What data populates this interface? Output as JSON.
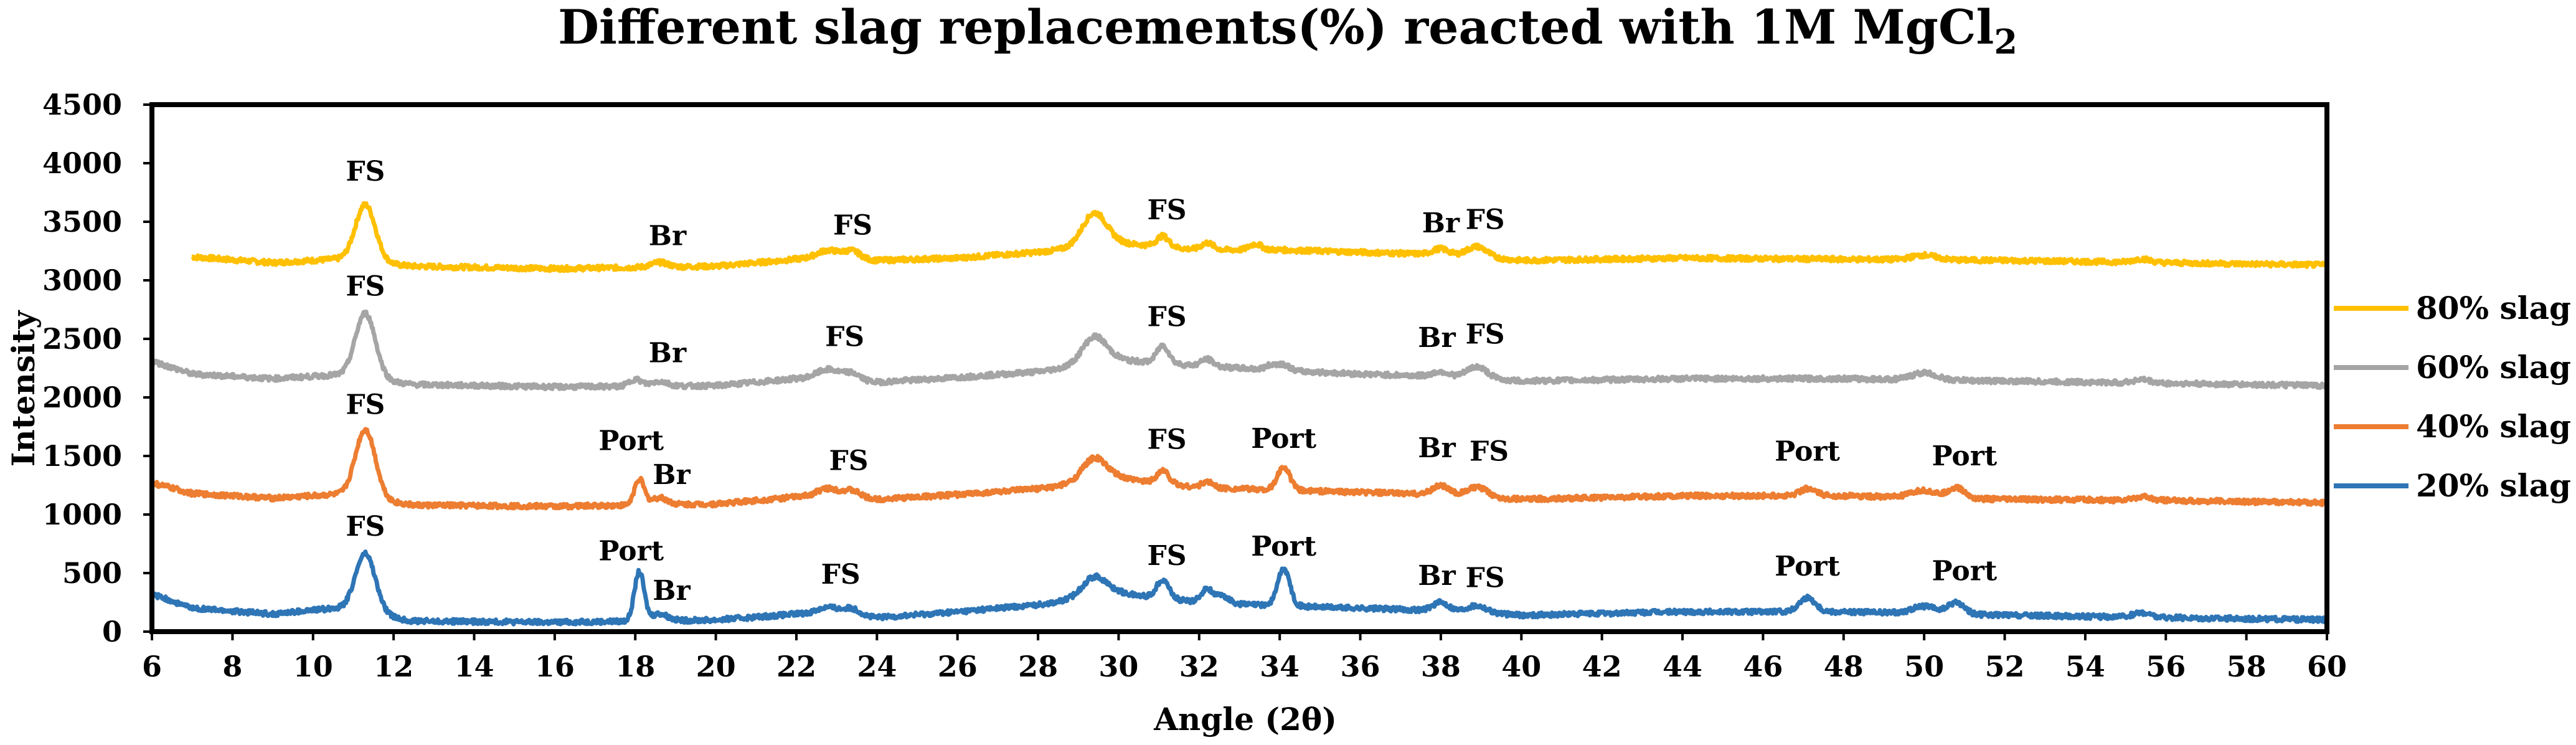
{
  "chart_data": {
    "type": "line",
    "title": "Different slag replacements(%) reacted with 1M MgCl",
    "title_subscript": "2",
    "xlabel": "Angle (2θ)",
    "ylabel": "Intensity",
    "xlim": [
      6,
      60
    ],
    "ylim": [
      0,
      4500
    ],
    "xticks": [
      6,
      8,
      10,
      12,
      14,
      16,
      18,
      20,
      22,
      24,
      26,
      28,
      30,
      32,
      34,
      36,
      38,
      40,
      42,
      44,
      46,
      48,
      50,
      52,
      54,
      56,
      58,
      60
    ],
    "yticks": [
      0,
      500,
      1000,
      1500,
      2000,
      2500,
      3000,
      3500,
      4000,
      4500
    ],
    "grid": false,
    "legend_position": "right",
    "series": [
      {
        "name": "80% slag",
        "color": "#FFC000",
        "x_start": 7,
        "baseline": [
          [
            7,
            3200
          ],
          [
            9,
            3150
          ],
          [
            10.5,
            3180
          ],
          [
            12.5,
            3120
          ],
          [
            16,
            3100
          ],
          [
            20,
            3120
          ],
          [
            22,
            3180
          ],
          [
            24,
            3170
          ],
          [
            26,
            3190
          ],
          [
            28,
            3240
          ],
          [
            30,
            3320
          ],
          [
            32,
            3260
          ],
          [
            34,
            3260
          ],
          [
            36,
            3240
          ],
          [
            38,
            3220
          ],
          [
            40,
            3170
          ],
          [
            44,
            3190
          ],
          [
            48,
            3180
          ],
          [
            52,
            3170
          ],
          [
            56,
            3150
          ],
          [
            60,
            3130
          ]
        ],
        "peaks": [
          [
            11.3,
            490,
            0.25
          ],
          [
            18.6,
            40,
            0.2
          ],
          [
            22.8,
            80,
            0.3
          ],
          [
            23.4,
            70,
            0.2
          ],
          [
            29.4,
            280,
            0.3
          ],
          [
            31.1,
            90,
            0.15
          ],
          [
            32.2,
            60,
            0.15
          ],
          [
            33.4,
            50,
            0.15
          ],
          [
            38.0,
            50,
            0.2
          ],
          [
            38.9,
            90,
            0.25
          ],
          [
            50.0,
            40,
            0.3
          ],
          [
            55.4,
            30,
            0.2
          ]
        ]
      },
      {
        "name": "60% slag",
        "color": "#A5A5A5",
        "x_start": 6,
        "baseline": [
          [
            6,
            2310
          ],
          [
            7,
            2200
          ],
          [
            9,
            2160
          ],
          [
            10.5,
            2190
          ],
          [
            12.5,
            2110
          ],
          [
            16,
            2090
          ],
          [
            20,
            2100
          ],
          [
            22,
            2160
          ],
          [
            24,
            2130
          ],
          [
            26,
            2170
          ],
          [
            28,
            2220
          ],
          [
            30,
            2320
          ],
          [
            32,
            2270
          ],
          [
            34,
            2230
          ],
          [
            36,
            2200
          ],
          [
            38,
            2180
          ],
          [
            40,
            2140
          ],
          [
            44,
            2160
          ],
          [
            48,
            2160
          ],
          [
            52,
            2140
          ],
          [
            56,
            2120
          ],
          [
            60,
            2100
          ]
        ],
        "peaks": [
          [
            11.3,
            560,
            0.25
          ],
          [
            18.0,
            60,
            0.15
          ],
          [
            18.6,
            40,
            0.2
          ],
          [
            22.8,
            90,
            0.3
          ],
          [
            23.4,
            60,
            0.2
          ],
          [
            29.4,
            230,
            0.3
          ],
          [
            31.1,
            150,
            0.15
          ],
          [
            32.2,
            60,
            0.15
          ],
          [
            33.8,
            40,
            0.15
          ],
          [
            34.1,
            50,
            0.15
          ],
          [
            38.0,
            40,
            0.2
          ],
          [
            38.9,
            100,
            0.25
          ],
          [
            50.0,
            60,
            0.3
          ],
          [
            55.4,
            30,
            0.2
          ]
        ]
      },
      {
        "name": "40% slag",
        "color": "#ED7D31",
        "x_start": 6,
        "baseline": [
          [
            6,
            1270
          ],
          [
            7,
            1180
          ],
          [
            9,
            1140
          ],
          [
            10.5,
            1170
          ],
          [
            12.5,
            1080
          ],
          [
            16,
            1070
          ],
          [
            20,
            1090
          ],
          [
            22,
            1150
          ],
          [
            24,
            1130
          ],
          [
            26,
            1170
          ],
          [
            28,
            1220
          ],
          [
            30,
            1310
          ],
          [
            32,
            1230
          ],
          [
            34,
            1210
          ],
          [
            36,
            1190
          ],
          [
            38,
            1170
          ],
          [
            40,
            1130
          ],
          [
            44,
            1160
          ],
          [
            48,
            1160
          ],
          [
            52,
            1130
          ],
          [
            56,
            1120
          ],
          [
            60,
            1100
          ]
        ],
        "peaks": [
          [
            11.3,
            590,
            0.25
          ],
          [
            18.1,
            220,
            0.12
          ],
          [
            18.6,
            60,
            0.2
          ],
          [
            22.8,
            80,
            0.3
          ],
          [
            23.4,
            60,
            0.2
          ],
          [
            29.4,
            200,
            0.3
          ],
          [
            31.1,
            110,
            0.15
          ],
          [
            32.2,
            50,
            0.15
          ],
          [
            34.1,
            200,
            0.15
          ],
          [
            38.0,
            80,
            0.2
          ],
          [
            38.9,
            80,
            0.25
          ],
          [
            47.1,
            60,
            0.2
          ],
          [
            50.0,
            60,
            0.3
          ],
          [
            50.8,
            90,
            0.2
          ],
          [
            55.4,
            30,
            0.2
          ]
        ]
      },
      {
        "name": "20% slag",
        "color": "#2E75B6",
        "x_start": 6,
        "baseline": [
          [
            6,
            320
          ],
          [
            7,
            200
          ],
          [
            9,
            150
          ],
          [
            10.5,
            200
          ],
          [
            12.5,
            90
          ],
          [
            16,
            80
          ],
          [
            20,
            100
          ],
          [
            22,
            150
          ],
          [
            24,
            120
          ],
          [
            26,
            170
          ],
          [
            28,
            230
          ],
          [
            30,
            330
          ],
          [
            32,
            250
          ],
          [
            34,
            220
          ],
          [
            36,
            200
          ],
          [
            38,
            180
          ],
          [
            40,
            140
          ],
          [
            44,
            170
          ],
          [
            48,
            170
          ],
          [
            52,
            140
          ],
          [
            56,
            120
          ],
          [
            60,
            100
          ]
        ],
        "peaks": [
          [
            11.3,
            510,
            0.25
          ],
          [
            18.1,
            420,
            0.12
          ],
          [
            18.6,
            60,
            0.2
          ],
          [
            22.8,
            70,
            0.3
          ],
          [
            23.4,
            60,
            0.2
          ],
          [
            29.4,
            170,
            0.3
          ],
          [
            31.1,
            160,
            0.15
          ],
          [
            32.2,
            120,
            0.15
          ],
          [
            32.6,
            60,
            0.15
          ],
          [
            34.1,
            320,
            0.15
          ],
          [
            38.0,
            70,
            0.2
          ],
          [
            38.9,
            60,
            0.25
          ],
          [
            47.1,
            120,
            0.2
          ],
          [
            50.0,
            60,
            0.3
          ],
          [
            50.8,
            100,
            0.2
          ],
          [
            55.4,
            40,
            0.2
          ]
        ]
      }
    ],
    "annotations": [
      {
        "text": "FS",
        "x": 11.3,
        "y": 3850
      },
      {
        "text": "Br",
        "x": 18.8,
        "y": 3300
      },
      {
        "text": "FS",
        "x": 23.4,
        "y": 3390
      },
      {
        "text": "FS",
        "x": 31.2,
        "y": 3520
      },
      {
        "text": "Br",
        "x": 38.0,
        "y": 3410
      },
      {
        "text": "FS",
        "x": 39.1,
        "y": 3440
      },
      {
        "text": "FS",
        "x": 11.3,
        "y": 2870
      },
      {
        "text": "Br",
        "x": 18.8,
        "y": 2300
      },
      {
        "text": "FS",
        "x": 23.2,
        "y": 2440
      },
      {
        "text": "FS",
        "x": 31.2,
        "y": 2610
      },
      {
        "text": "Br",
        "x": 37.9,
        "y": 2430
      },
      {
        "text": "FS",
        "x": 39.1,
        "y": 2460
      },
      {
        "text": "FS",
        "x": 11.3,
        "y": 1860
      },
      {
        "text": "Port",
        "x": 17.9,
        "y": 1550
      },
      {
        "text": "Br",
        "x": 18.9,
        "y": 1260
      },
      {
        "text": "FS",
        "x": 23.3,
        "y": 1380
      },
      {
        "text": "FS",
        "x": 31.2,
        "y": 1560
      },
      {
        "text": "Port",
        "x": 34.1,
        "y": 1570
      },
      {
        "text": "Br",
        "x": 37.9,
        "y": 1490
      },
      {
        "text": "FS",
        "x": 39.2,
        "y": 1460
      },
      {
        "text": "Port",
        "x": 47.1,
        "y": 1460
      },
      {
        "text": "Port",
        "x": 51.0,
        "y": 1420
      },
      {
        "text": "FS",
        "x": 11.3,
        "y": 820
      },
      {
        "text": "Port",
        "x": 17.9,
        "y": 610
      },
      {
        "text": "Br",
        "x": 18.9,
        "y": 270
      },
      {
        "text": "FS",
        "x": 23.1,
        "y": 410
      },
      {
        "text": "FS",
        "x": 31.2,
        "y": 570
      },
      {
        "text": "Port",
        "x": 34.1,
        "y": 650
      },
      {
        "text": "Br",
        "x": 37.9,
        "y": 400
      },
      {
        "text": "FS",
        "x": 39.1,
        "y": 380
      },
      {
        "text": "Port",
        "x": 47.1,
        "y": 480
      },
      {
        "text": "Port",
        "x": 51.0,
        "y": 440
      }
    ]
  }
}
